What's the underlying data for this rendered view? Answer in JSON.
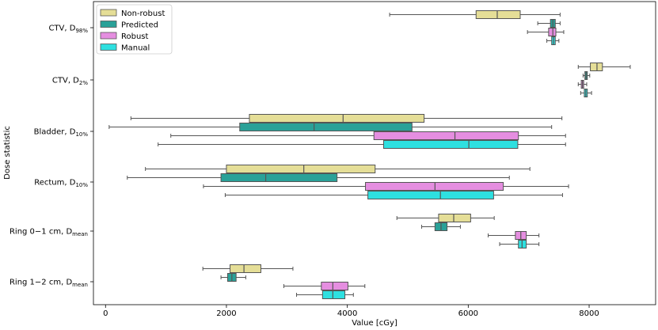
{
  "chart_data": {
    "type": "boxplot-horizontal",
    "title": "",
    "xlabel": "Value [cGy]",
    "ylabel": "Dose statistic",
    "xlim": [
      -200,
      9100
    ],
    "xticks": [
      0,
      2000,
      4000,
      6000,
      8000
    ],
    "xtick_labels": [
      "0",
      "2000",
      "4000",
      "6000",
      "8000"
    ],
    "legend_position": "upper-left",
    "series": [
      {
        "name": "Non-robust",
        "color": "#e5de97",
        "edge": "#8f8a4a"
      },
      {
        "name": "Predicted",
        "color": "#2aa198",
        "edge": "#1c5f59"
      },
      {
        "name": "Robust",
        "color": "#e58ee0",
        "edge": "#8a4a86"
      },
      {
        "name": "Manual",
        "color": "#2ee0e0",
        "edge": "#1a7d7d"
      }
    ],
    "categories": [
      {
        "label": "CTV, D",
        "sub": "98%"
      },
      {
        "label": "CTV, D",
        "sub": "2%"
      },
      {
        "label": "Bladder, D",
        "sub": "10%"
      },
      {
        "label": "Rectum, D",
        "sub": "10%"
      },
      {
        "label": "Ring 0−1 cm, D",
        "sub": "mean"
      },
      {
        "label": "Ring 1−2 cm, D",
        "sub": "mean"
      }
    ],
    "boxes": [
      [
        {
          "whislo": 4700,
          "q1": 6130,
          "med": 6480,
          "q3": 6860,
          "whishi": 7520
        },
        {
          "whislo": 7150,
          "q1": 7360,
          "med": 7400,
          "q3": 7440,
          "whishi": 7520
        },
        {
          "whislo": 6980,
          "q1": 7330,
          "med": 7400,
          "q3": 7450,
          "whishi": 7580
        },
        {
          "whislo": 7300,
          "q1": 7380,
          "med": 7410,
          "q3": 7440,
          "whishi": 7500
        }
      ],
      [
        {
          "whislo": 7820,
          "q1": 8020,
          "med": 8130,
          "q3": 8220,
          "whishi": 8680
        },
        {
          "whislo": 7900,
          "q1": 7930,
          "med": 7950,
          "q3": 7970,
          "whishi": 8010
        },
        {
          "whislo": 7820,
          "q1": 7870,
          "med": 7890,
          "q3": 7910,
          "whishi": 7960
        },
        {
          "whislo": 7860,
          "q1": 7920,
          "med": 7945,
          "q3": 7970,
          "whishi": 8040
        }
      ],
      [
        {
          "whislo": 420,
          "q1": 2380,
          "med": 3930,
          "q3": 5270,
          "whishi": 7550
        },
        {
          "whislo": 60,
          "q1": 2220,
          "med": 3450,
          "q3": 5070,
          "whishi": 7380
        },
        {
          "whislo": 1080,
          "q1": 4440,
          "med": 5780,
          "q3": 6830,
          "whishi": 7610
        },
        {
          "whislo": 870,
          "q1": 4600,
          "med": 6010,
          "q3": 6820,
          "whishi": 7610
        }
      ],
      [
        {
          "whislo": 660,
          "q1": 2000,
          "med": 3280,
          "q3": 4460,
          "whishi": 7020
        },
        {
          "whislo": 360,
          "q1": 1910,
          "med": 2650,
          "q3": 3830,
          "whishi": 6680
        },
        {
          "whislo": 1620,
          "q1": 4300,
          "med": 5450,
          "q3": 6580,
          "whishi": 7660
        },
        {
          "whislo": 1980,
          "q1": 4340,
          "med": 5540,
          "q3": 6420,
          "whishi": 7560
        }
      ],
      [
        {
          "whislo": 4820,
          "q1": 5510,
          "med": 5760,
          "q3": 6040,
          "whishi": 6430
        },
        {
          "whislo": 5230,
          "q1": 5450,
          "med": 5550,
          "q3": 5650,
          "whishi": 5870
        },
        {
          "whislo": 6330,
          "q1": 6780,
          "med": 6870,
          "q3": 6960,
          "whishi": 7170
        },
        {
          "whislo": 6520,
          "q1": 6830,
          "med": 6890,
          "q3": 6960,
          "whishi": 7170
        }
      ],
      [
        {
          "whislo": 1610,
          "q1": 2060,
          "med": 2290,
          "q3": 2570,
          "whishi": 3100
        },
        {
          "whislo": 1910,
          "q1": 2020,
          "med": 2090,
          "q3": 2160,
          "whishi": 2320
        },
        {
          "whislo": 2950,
          "q1": 3570,
          "med": 3760,
          "q3": 4010,
          "whishi": 4290
        },
        {
          "whislo": 3160,
          "q1": 3590,
          "med": 3760,
          "q3": 3960,
          "whishi": 4100
        }
      ]
    ]
  }
}
